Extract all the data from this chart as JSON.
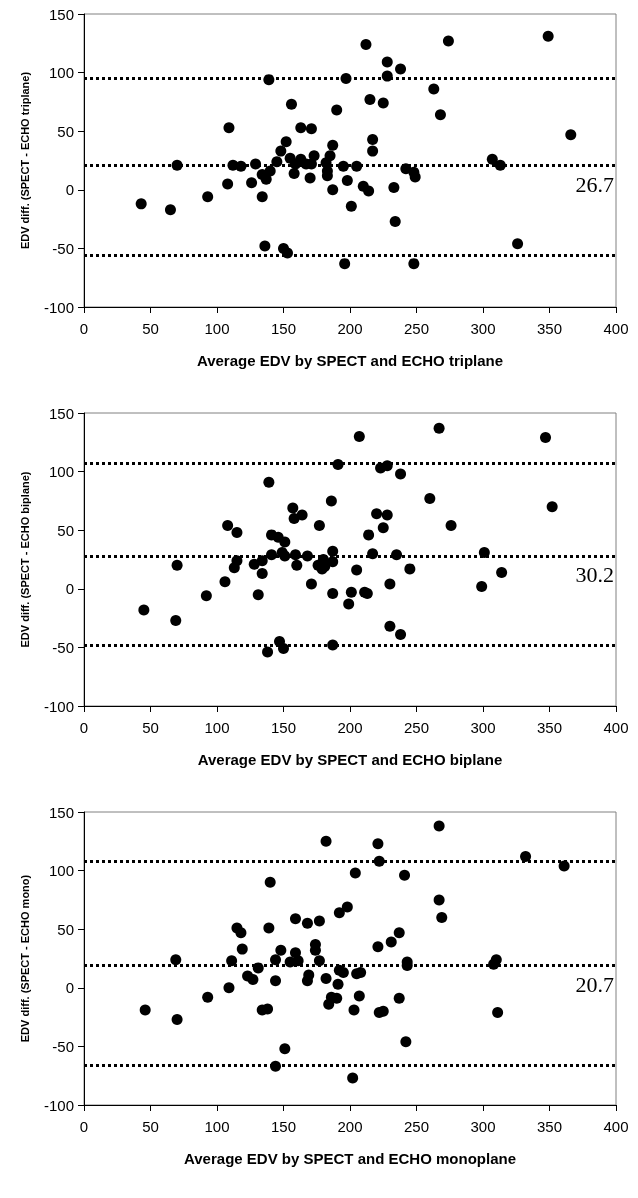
{
  "chart_data": [
    {
      "type": "scatter",
      "xlabel": "Average EDV by SPECT and ECHO triplane",
      "ylabel": "EDV diff. (SPECT - ECHO triplane)",
      "marker": "circle",
      "grid": false,
      "xlim": [
        0,
        400
      ],
      "xticks": [
        0,
        50,
        100,
        150,
        200,
        250,
        300,
        350,
        400
      ],
      "ylim": [
        -100,
        150
      ],
      "yticks": [
        -100,
        -50,
        0,
        50,
        100,
        150
      ],
      "ref_lines": [
        {
          "axis": "y",
          "value": 95,
          "line_style": "dotted",
          "color": "#000000"
        },
        {
          "axis": "y",
          "value": 21,
          "line_style": "dotted",
          "color": "#000000"
        },
        {
          "axis": "y",
          "value": -56,
          "line_style": "dotted",
          "color": "#000000"
        }
      ],
      "annotations": [
        "26.7"
      ],
      "series": [
        {
          "color": "#000000",
          "x": [
            43,
            65,
            70,
            93,
            108,
            109,
            112,
            118,
            126,
            129,
            134,
            134,
            136,
            137,
            139,
            140,
            145,
            148,
            150,
            152,
            153,
            155,
            156,
            158,
            159,
            163,
            163,
            167,
            170,
            171,
            171,
            173,
            182,
            183,
            183,
            185,
            187,
            187,
            190,
            195,
            196,
            197,
            198,
            205,
            201,
            210,
            212,
            214,
            215,
            217,
            217,
            225,
            228,
            228,
            233,
            234,
            238,
            242,
            248,
            249,
            248,
            263,
            268,
            274,
            307,
            313,
            326,
            349,
            366
          ],
          "values": [
            -12,
            -17,
            21,
            -6,
            5,
            53,
            21,
            20,
            6,
            22,
            -6,
            13,
            -48,
            9,
            94,
            16,
            24,
            33,
            -50,
            41,
            -54,
            27,
            73,
            14,
            22,
            26,
            53,
            22,
            10,
            22,
            52,
            29,
            23,
            16,
            12,
            29,
            38,
            0,
            68,
            20,
            -63,
            95,
            8,
            20,
            -14,
            3,
            124,
            -1,
            77,
            43,
            33,
            74,
            109,
            97,
            2,
            -27,
            103,
            18,
            15,
            11,
            -63,
            86,
            64,
            127,
            26,
            21,
            -46,
            131,
            47
          ]
        }
      ]
    },
    {
      "type": "scatter",
      "xlabel": "Average EDV by SPECT and ECHO biplane",
      "ylabel": "EDV diff. (SPECT - ECHO biplane)",
      "marker": "circle",
      "grid": false,
      "xlim": [
        0,
        400
      ],
      "xticks": [
        0,
        50,
        100,
        150,
        200,
        250,
        300,
        350,
        400
      ],
      "ylim": [
        -100,
        150
      ],
      "yticks": [
        -100,
        -50,
        0,
        50,
        100,
        150
      ],
      "ref_lines": [
        {
          "axis": "y",
          "value": 107,
          "line_style": "dotted",
          "color": "#000000"
        },
        {
          "axis": "y",
          "value": 28,
          "line_style": "dotted",
          "color": "#000000"
        },
        {
          "axis": "y",
          "value": -48,
          "line_style": "dotted",
          "color": "#000000"
        }
      ],
      "annotations": [
        "30.2"
      ],
      "series": [
        {
          "color": "#000000",
          "x": [
            45,
            69,
            70,
            92,
            106,
            108,
            113,
            115,
            115,
            128,
            131,
            134,
            134,
            138,
            139,
            141,
            141,
            146,
            147,
            149,
            150,
            151,
            151,
            157,
            158,
            159,
            160,
            164,
            168,
            171,
            176,
            177,
            179,
            180,
            181,
            186,
            187,
            187,
            187,
            187,
            191,
            199,
            201,
            205,
            207,
            211,
            213,
            214,
            217,
            220,
            223,
            225,
            228,
            228,
            230,
            230,
            235,
            238,
            238,
            245,
            260,
            267,
            276,
            299,
            301,
            314,
            347,
            352
          ],
          "values": [
            -18,
            -27,
            20,
            -6,
            6,
            54,
            18,
            24,
            48,
            21,
            -5,
            13,
            24,
            -54,
            91,
            46,
            29,
            44,
            -45,
            31,
            -51,
            40,
            28,
            69,
            60,
            29,
            20,
            63,
            28,
            4,
            20,
            54,
            17,
            25,
            19,
            75,
            23,
            32,
            -4,
            -48,
            106,
            -13,
            -3,
            16,
            130,
            -3,
            -4,
            46,
            30,
            64,
            103,
            52,
            105,
            63,
            4,
            -32,
            29,
            98,
            -39,
            17,
            77,
            137,
            54,
            2,
            31,
            14,
            129,
            70
          ]
        }
      ]
    },
    {
      "type": "scatter",
      "xlabel": "Average EDV by SPECT and ECHO monoplane",
      "ylabel": "EDV diff. (SPECT - ECHO mono)",
      "marker": "circle",
      "grid": false,
      "xlim": [
        0,
        400
      ],
      "xticks": [
        0,
        50,
        100,
        150,
        200,
        250,
        300,
        350,
        400
      ],
      "ylim": [
        -100,
        150
      ],
      "yticks": [
        -100,
        -50,
        0,
        50,
        100,
        150
      ],
      "ref_lines": [
        {
          "axis": "y",
          "value": 108,
          "line_style": "dotted",
          "color": "#000000"
        },
        {
          "axis": "y",
          "value": 19,
          "line_style": "dotted",
          "color": "#000000"
        },
        {
          "axis": "y",
          "value": -66,
          "line_style": "dotted",
          "color": "#000000"
        }
      ],
      "annotations": [
        "20.7"
      ],
      "series": [
        {
          "color": "#000000",
          "x": [
            46,
            69,
            70,
            93,
            109,
            111,
            115,
            118,
            119,
            123,
            127,
            131,
            134,
            138,
            139,
            140,
            144,
            144,
            148,
            155,
            159,
            159,
            161,
            151,
            144,
            168,
            169,
            168,
            174,
            174,
            177,
            177,
            182,
            182,
            184,
            186,
            190,
            191,
            192,
            192,
            195,
            198,
            203,
            204,
            205,
            208,
            207,
            202,
            221,
            221,
            222,
            222,
            225,
            231,
            237,
            237,
            241,
            242,
            243,
            243,
            267,
            267,
            269,
            308,
            310,
            311,
            332,
            361
          ],
          "values": [
            -19,
            24,
            -27,
            -8,
            0,
            23,
            51,
            47,
            33,
            10,
            7,
            17,
            -19,
            -18,
            51,
            90,
            24,
            6,
            32,
            22,
            30,
            59,
            23,
            -52,
            -67,
            6,
            11,
            55,
            37,
            32,
            23,
            57,
            125,
            8,
            -14,
            -8,
            -9,
            3,
            64,
            15,
            13,
            69,
            -19,
            98,
            12,
            13,
            -7,
            -77,
            35,
            123,
            108,
            -21,
            -20,
            39,
            47,
            -9,
            96,
            -46,
            22,
            19,
            138,
            75,
            60,
            20,
            24,
            -21,
            112,
            104
          ]
        }
      ]
    }
  ]
}
